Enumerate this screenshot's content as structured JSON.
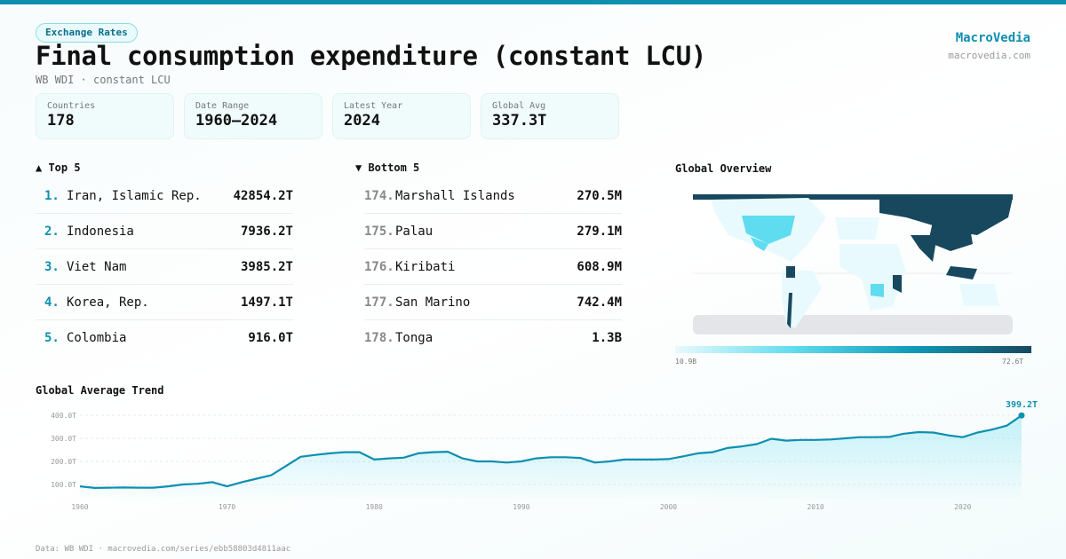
{
  "header": {
    "category": "Exchange Rates",
    "title": "Final consumption expenditure (constant LCU)",
    "subtitle": "WB WDI · constant LCU",
    "brand": "MacroVedia",
    "brand_url": "macrovedia.com"
  },
  "stats": [
    {
      "label": "Countries",
      "value": "178"
    },
    {
      "label": "Date Range",
      "value": "1960–2024"
    },
    {
      "label": "Latest Year",
      "value": "2024"
    },
    {
      "label": "Global Avg",
      "value": "337.3T"
    }
  ],
  "top5": {
    "title": "▲ Top 5",
    "items": [
      {
        "rank": "1.",
        "name": "Iran, Islamic Rep.",
        "value": "42854.2T"
      },
      {
        "rank": "2.",
        "name": "Indonesia",
        "value": "7936.2T"
      },
      {
        "rank": "3.",
        "name": "Viet Nam",
        "value": "3985.2T"
      },
      {
        "rank": "4.",
        "name": "Korea, Rep.",
        "value": "1497.1T"
      },
      {
        "rank": "5.",
        "name": "Colombia",
        "value": "916.0T"
      }
    ]
  },
  "bottom5": {
    "title": "▼ Bottom 5",
    "items": [
      {
        "rank": "174.",
        "name": "Marshall Islands",
        "value": "270.5M"
      },
      {
        "rank": "175.",
        "name": "Palau",
        "value": "279.1M"
      },
      {
        "rank": "176.",
        "name": "Kiribati",
        "value": "608.9M"
      },
      {
        "rank": "177.",
        "name": "San Marino",
        "value": "742.4M"
      },
      {
        "rank": "178.",
        "name": "Tonga",
        "value": "1.3B"
      }
    ]
  },
  "map": {
    "title": "Global Overview",
    "legend_min": "10.9B",
    "legend_max": "72.6T",
    "colors": {
      "low": "#e8fafd",
      "mid": "#5fdcef",
      "high": "#17485e",
      "nodata": "#e3e5e8"
    }
  },
  "footer": "Data: WB WDI · macrovedia.com/series/ebb58803d4811aac",
  "chart_data": {
    "type": "area",
    "title": "Global Average Trend",
    "accent": "#0e8fb0",
    "x_ticks": [
      "1960",
      "1970",
      "1980",
      "1990",
      "2000",
      "2010",
      "2020"
    ],
    "y_ticks": [
      "100.0T",
      "200.0T",
      "300.0T",
      "400.0T"
    ],
    "ylim": [
      0,
      400
    ],
    "grid": true,
    "last_label": "399.2T",
    "x": [
      1960,
      1961,
      1962,
      1963,
      1964,
      1965,
      1966,
      1967,
      1968,
      1969,
      1970,
      1971,
      1972,
      1973,
      1974,
      1975,
      1976,
      1977,
      1978,
      1979,
      1980,
      1981,
      1982,
      1983,
      1984,
      1985,
      1986,
      1987,
      1988,
      1989,
      1990,
      1991,
      1992,
      1993,
      1994,
      1995,
      1996,
      1997,
      1998,
      1999,
      2000,
      2001,
      2002,
      2003,
      2004,
      2005,
      2006,
      2007,
      2008,
      2009,
      2010,
      2011,
      2012,
      2013,
      2014,
      2015,
      2016,
      2017,
      2018,
      2019,
      2020,
      2021,
      2022,
      2023,
      2024
    ],
    "values": [
      92,
      85,
      86,
      87,
      86,
      86,
      92,
      100,
      103,
      110,
      92,
      110,
      125,
      140,
      180,
      220,
      228,
      235,
      240,
      240,
      208,
      213,
      216,
      235,
      240,
      242,
      213,
      200,
      200,
      195,
      200,
      213,
      218,
      218,
      215,
      195,
      200,
      208,
      208,
      208,
      210,
      222,
      235,
      240,
      258,
      265,
      275,
      298,
      290,
      293,
      293,
      295,
      300,
      305,
      305,
      306,
      320,
      327,
      325,
      313,
      305,
      325,
      338,
      355,
      399.2
    ]
  }
}
